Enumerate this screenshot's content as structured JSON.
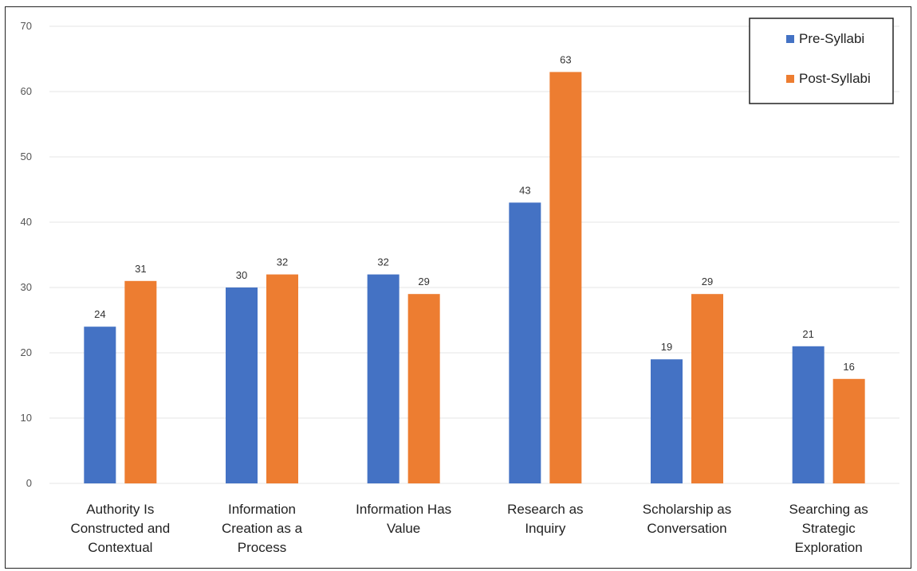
{
  "chart_data": {
    "type": "bar",
    "categories": [
      "Authority Is Constructed and Contextual",
      "Information Creation as a Process",
      "Information Has Value",
      "Research as Inquiry",
      "Scholarship as Conversation",
      "Searching as Strategic Exploration"
    ],
    "category_lines": [
      [
        "Authority Is",
        "Constructed and",
        "Contextual"
      ],
      [
        "Information",
        "Creation as a",
        "Process"
      ],
      [
        "Information Has",
        "Value"
      ],
      [
        "Research as",
        "Inquiry"
      ],
      [
        "Scholarship as",
        "Conversation"
      ],
      [
        "Searching as",
        "Strategic",
        "Exploration"
      ]
    ],
    "series": [
      {
        "name": "Pre-Syllabi",
        "color": "#4472C4",
        "values": [
          24,
          30,
          32,
          43,
          19,
          21
        ]
      },
      {
        "name": "Post-Syllabi",
        "color": "#ED7D31",
        "values": [
          31,
          32,
          29,
          63,
          29,
          16
        ]
      }
    ],
    "yticks": [
      0,
      10,
      20,
      30,
      40,
      50,
      60,
      70
    ],
    "ylim": [
      0,
      70
    ],
    "grid": true,
    "legend": "top-right",
    "data_labels": true
  }
}
